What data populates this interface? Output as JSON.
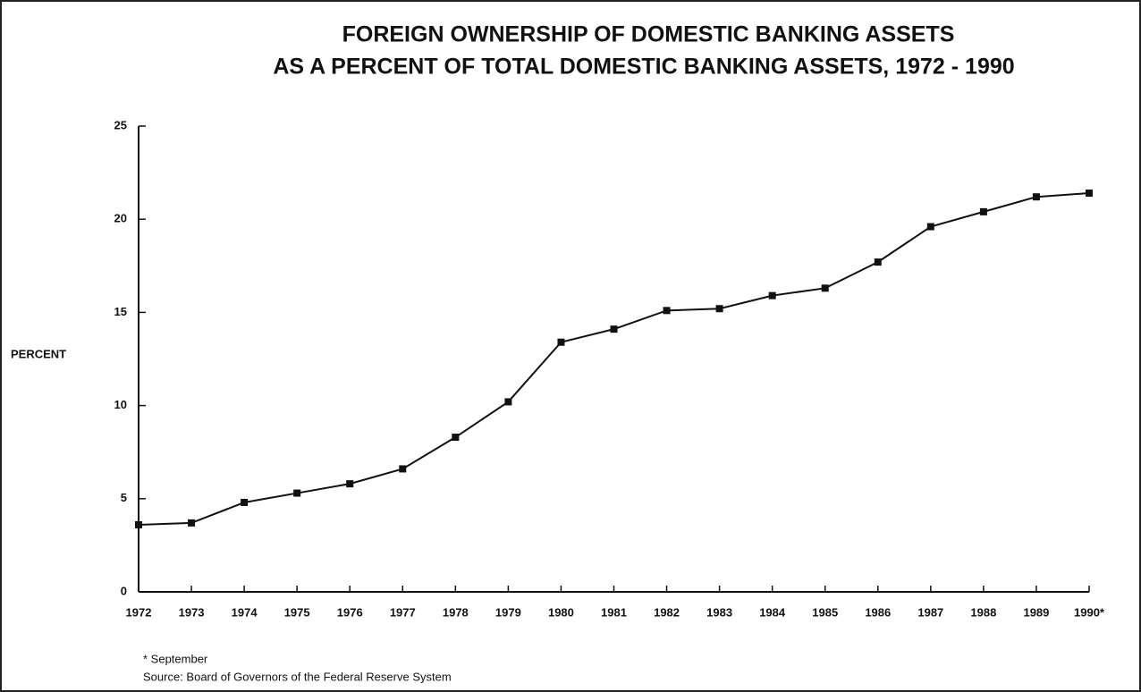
{
  "chart_data": {
    "type": "line",
    "title": [
      "FOREIGN OWNERSHIP OF DOMESTIC BANKING ASSETS",
      "AS A PERCENT OF TOTAL DOMESTIC BANKING ASSETS, 1972 - 1990"
    ],
    "y_label": "PERCENT",
    "categories": [
      "1972",
      "1973",
      "1974",
      "1975",
      "1976",
      "1977",
      "1978",
      "1979",
      "1980",
      "1981",
      "1982",
      "1983",
      "1984",
      "1985",
      "1986",
      "1987",
      "1988",
      "1989",
      "1990*"
    ],
    "series": [
      {
        "color": "#111111",
        "values": [
          3.6,
          3.7,
          4.8,
          5.3,
          5.8,
          6.6,
          8.3,
          10.2,
          13.4,
          14.1,
          15.1,
          15.2,
          15.9,
          16.3,
          17.7,
          19.6,
          20.4,
          21.2,
          21.4
        ]
      }
    ],
    "ylim": [
      0,
      25
    ],
    "yticks": [
      0,
      5,
      10,
      15,
      20,
      25
    ],
    "notes": [
      "* September",
      "Source: Board of Governors of the Federal Reserve System"
    ]
  }
}
